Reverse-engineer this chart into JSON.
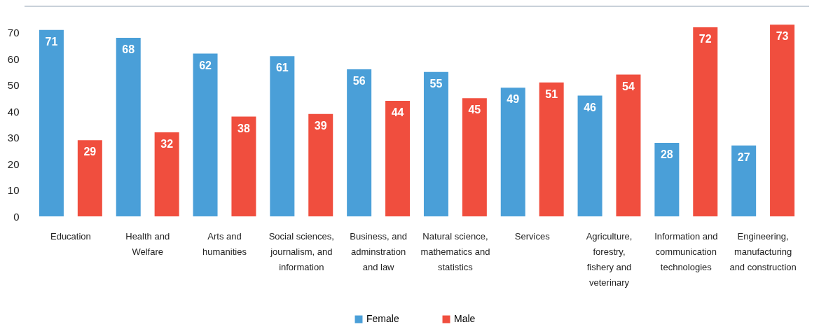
{
  "chart_data": {
    "type": "bar",
    "categories": [
      "Education",
      "Health and Welfare",
      "Arts and humanities",
      "Social sciences, journalism, and information",
      "Business, and adminstration and law",
      "Natural science, mathematics and statistics",
      "Services",
      "Agriculture, forestry, fishery and veterinary",
      "Information and communication technologies",
      "Engineering, manufacturing and construction"
    ],
    "series": [
      {
        "name": "Female",
        "color": "#4a9fd8",
        "values": [
          71,
          68,
          62,
          61,
          56,
          55,
          49,
          46,
          28,
          27
        ]
      },
      {
        "name": "Male",
        "color": "#f04e3e",
        "values": [
          29,
          32,
          38,
          39,
          44,
          45,
          51,
          54,
          72,
          73
        ]
      }
    ],
    "ylim": [
      0,
      80
    ],
    "yticks": [
      0,
      10,
      20,
      30,
      40,
      50,
      60,
      70
    ],
    "grid": false,
    "legend": "bottom",
    "data_labels": true
  }
}
